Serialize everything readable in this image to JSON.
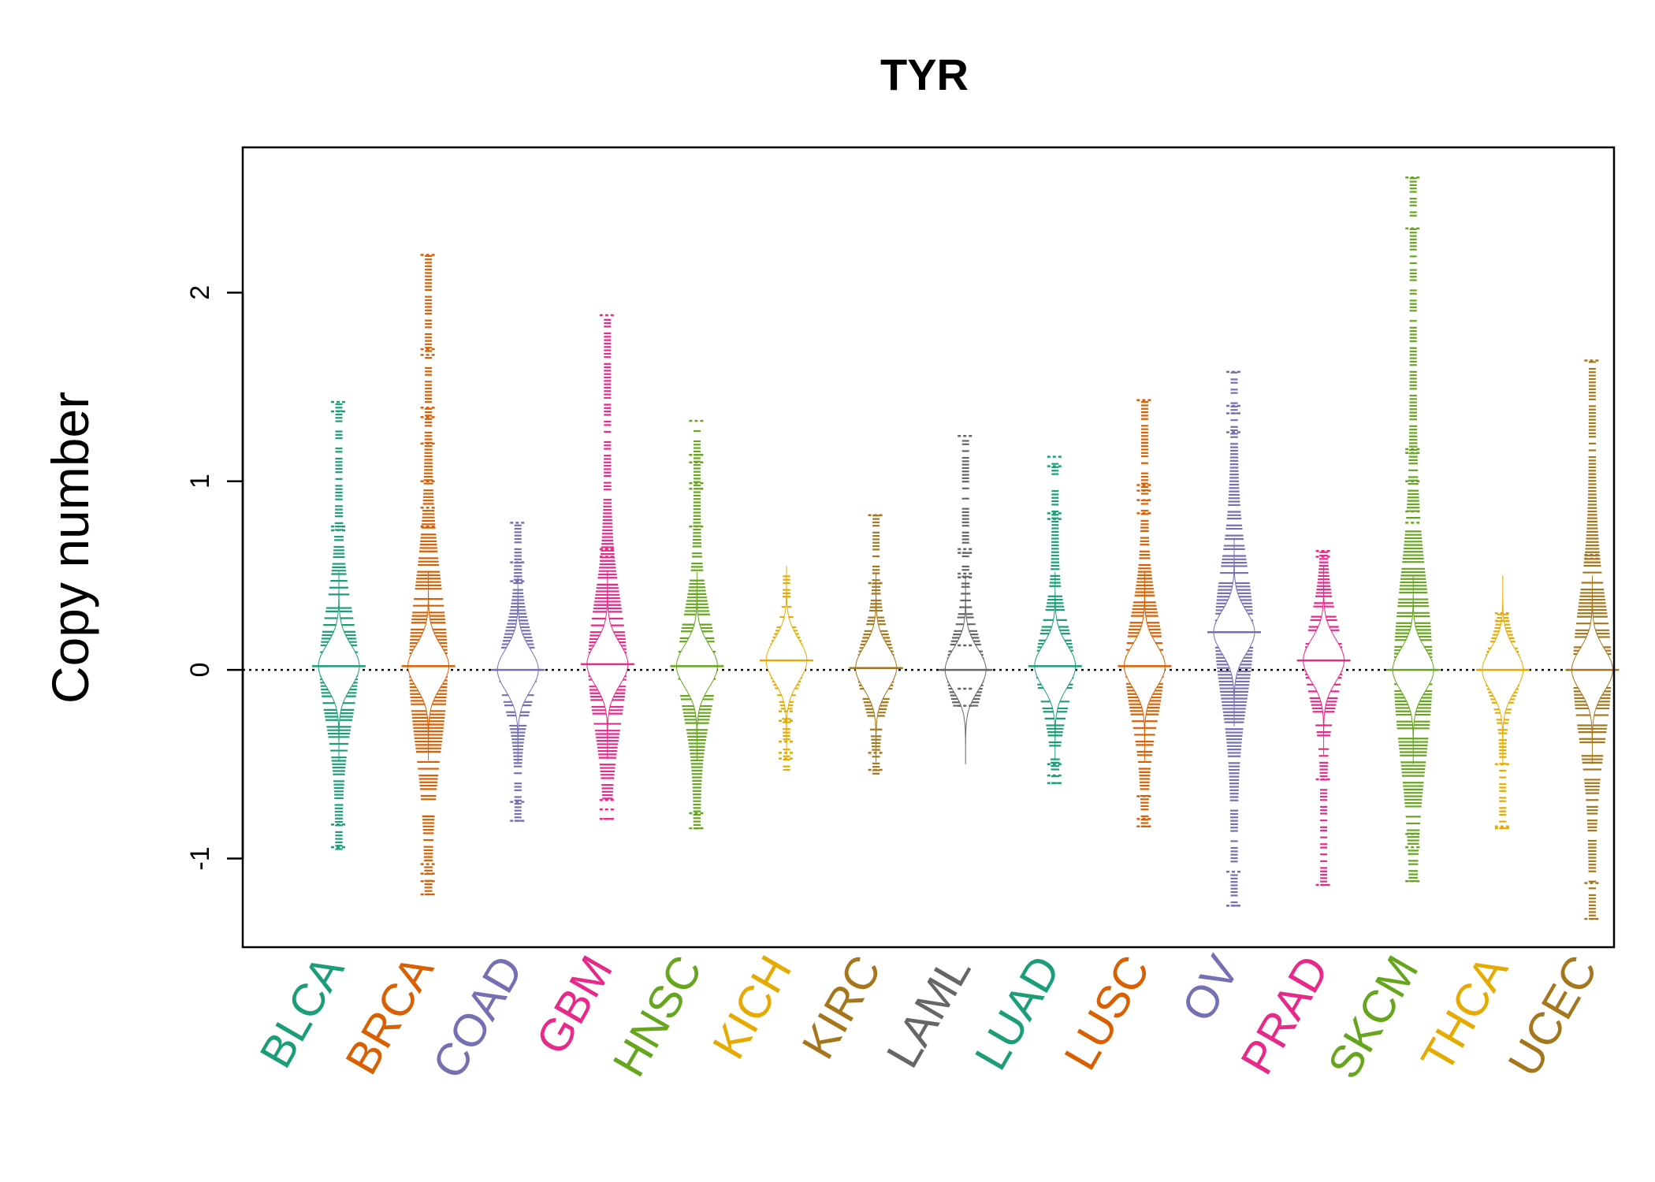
{
  "chart_data": {
    "type": "beanplot",
    "title": "TYR",
    "xlabel": "",
    "ylabel": "Copy number",
    "ylim": [
      -1.47,
      2.77
    ],
    "yticks": [
      -1,
      0,
      1,
      2
    ],
    "ytick_labels": [
      "-1",
      "0",
      "1",
      "2"
    ],
    "reference_line": 0,
    "categories": [
      "BLCA",
      "BRCA",
      "COAD",
      "GBM",
      "HNSC",
      "KICH",
      "KIRC",
      "LAML",
      "LUAD",
      "LUSC",
      "OV",
      "PRAD",
      "SKCM",
      "THCA",
      "UCEC"
    ],
    "colors": [
      "#1B9E77",
      "#D95F02",
      "#7570B3",
      "#E7298A",
      "#66A61E",
      "#E6AB02",
      "#A6761D",
      "#666666",
      "#1B9E77",
      "#D95F02",
      "#7570B3",
      "#E7298A",
      "#66A61E",
      "#E6AB02",
      "#A6761D"
    ],
    "series": [
      {
        "name": "BLCA",
        "min": -0.95,
        "max": 1.42,
        "median": 0.02,
        "outliers": [
          1.42,
          1.37,
          0.76,
          0.74,
          -0.82,
          -0.94
        ]
      },
      {
        "name": "BRCA",
        "min": -1.19,
        "max": 2.2,
        "median": 0.02,
        "outliers": [
          2.2,
          1.7,
          1.67,
          1.39,
          1.34,
          1.2,
          1.0,
          0.86,
          0.76,
          -1.03,
          -1.08,
          -1.12,
          -1.19
        ]
      },
      {
        "name": "COAD",
        "min": -0.8,
        "max": 0.78,
        "median": 0.0,
        "outliers": [
          0.78,
          0.57,
          0.47,
          -0.7,
          -0.8
        ]
      },
      {
        "name": "GBM",
        "min": -0.79,
        "max": 1.88,
        "median": 0.03,
        "outliers": [
          1.88,
          0.64,
          0.6,
          -0.69,
          -0.74,
          -0.79
        ]
      },
      {
        "name": "HNSC",
        "min": -0.84,
        "max": 1.32,
        "median": 0.02,
        "outliers": [
          1.32,
          1.14,
          1.1,
          0.99,
          0.96,
          0.76,
          -0.76,
          -0.84
        ]
      },
      {
        "name": "KICH",
        "min": -0.53,
        "max": 0.51,
        "median": 0.05,
        "outliers": [
          -0.22,
          -0.27,
          -0.38,
          -0.44,
          -0.47
        ]
      },
      {
        "name": "KIRC",
        "min": -0.55,
        "max": 0.82,
        "median": 0.01,
        "outliers": [
          0.82,
          0.46,
          -0.44,
          -0.53
        ]
      },
      {
        "name": "LAML",
        "min": -0.19,
        "max": 1.24,
        "median": 0.0,
        "outliers": [
          1.24,
          0.64,
          0.62,
          0.51,
          0.49,
          0.13,
          -0.1,
          -0.19
        ]
      },
      {
        "name": "LUAD",
        "min": -0.6,
        "max": 1.13,
        "median": 0.02,
        "outliers": [
          1.13,
          1.08,
          0.83,
          0.8,
          -0.5,
          -0.56,
          -0.6
        ]
      },
      {
        "name": "LUSC",
        "min": -0.83,
        "max": 1.43,
        "median": 0.02,
        "outliers": [
          1.43,
          0.98,
          0.95,
          0.9,
          0.83,
          -0.67,
          -0.79,
          -0.83
        ]
      },
      {
        "name": "OV",
        "min": -1.25,
        "max": 1.58,
        "median": 0.2,
        "outliers": [
          1.58,
          1.4,
          1.36,
          1.26,
          -1.07,
          -1.25
        ]
      },
      {
        "name": "PRAD",
        "min": -1.14,
        "max": 0.63,
        "median": 0.05,
        "outliers": [
          0.63,
          0.6,
          -0.58,
          -1.14
        ]
      },
      {
        "name": "SKCM",
        "min": -1.12,
        "max": 2.61,
        "median": 0.0,
        "outliers": [
          2.61,
          2.34,
          1.17,
          1.15,
          1.0,
          0.84,
          0.78,
          -0.87,
          -0.94,
          -1.12
        ]
      },
      {
        "name": "THCA",
        "min": -0.84,
        "max": 0.3,
        "median": 0.0,
        "outliers": [
          0.3,
          0.26,
          -0.5,
          -0.83,
          -0.84
        ]
      },
      {
        "name": "UCEC",
        "min": -1.32,
        "max": 1.64,
        "median": 0.0,
        "outliers": [
          1.64,
          0.61,
          0.59,
          -1.13,
          -1.32
        ]
      }
    ]
  }
}
